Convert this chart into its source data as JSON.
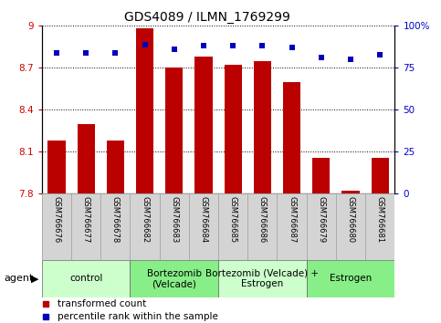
{
  "title": "GDS4089 / ILMN_1769299",
  "samples": [
    "GSM766676",
    "GSM766677",
    "GSM766678",
    "GSM766682",
    "GSM766683",
    "GSM766684",
    "GSM766685",
    "GSM766686",
    "GSM766687",
    "GSM766679",
    "GSM766680",
    "GSM766681"
  ],
  "bar_values": [
    8.18,
    8.3,
    8.18,
    8.98,
    8.7,
    8.78,
    8.72,
    8.75,
    8.6,
    8.06,
    7.82,
    8.06
  ],
  "dot_values": [
    84,
    84,
    84,
    89,
    86,
    88,
    88,
    88,
    87,
    81,
    80,
    83
  ],
  "ymin": 7.8,
  "ymax": 9.0,
  "yticks": [
    7.8,
    8.1,
    8.4,
    8.7,
    9.0
  ],
  "right_yticks": [
    0,
    25,
    50,
    75,
    100
  ],
  "bar_color": "#bb0000",
  "dot_color": "#0000bb",
  "groups": [
    {
      "label": "control",
      "start": 0,
      "end": 3,
      "color": "#ccffcc"
    },
    {
      "label": "Bortezomib\n(Velcade)",
      "start": 3,
      "end": 6,
      "color": "#88ee88"
    },
    {
      "label": "Bortezomib (Velcade) +\nEstrogen",
      "start": 6,
      "end": 9,
      "color": "#ccffcc"
    },
    {
      "label": "Estrogen",
      "start": 9,
      "end": 12,
      "color": "#88ee88"
    }
  ],
  "legend_bar_label": "transformed count",
  "legend_dot_label": "percentile rank within the sample",
  "agent_label": "agent",
  "tick_label_color_left": "#cc0000",
  "tick_label_color_right": "#0000cc",
  "title_fontsize": 10,
  "axis_fontsize": 7.5,
  "legend_fontsize": 7.5,
  "group_fontsize": 7.5,
  "sample_fontsize": 6
}
